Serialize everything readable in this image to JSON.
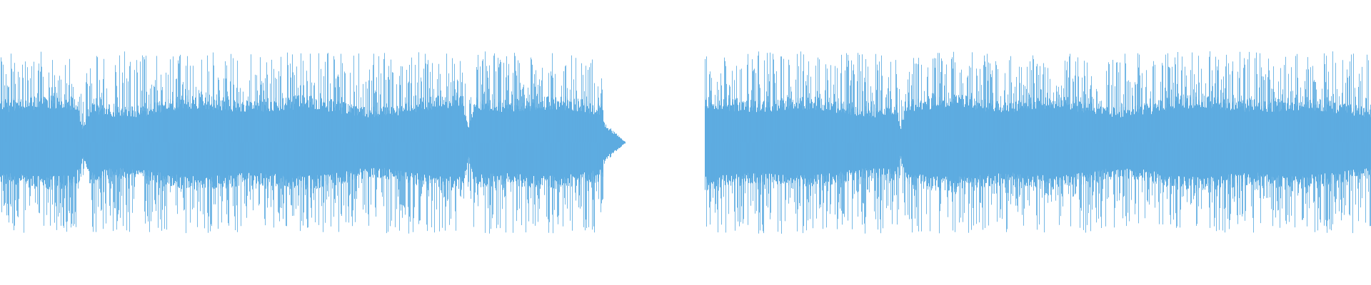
{
  "waveform": {
    "color": "#5dabe0"
  }
}
